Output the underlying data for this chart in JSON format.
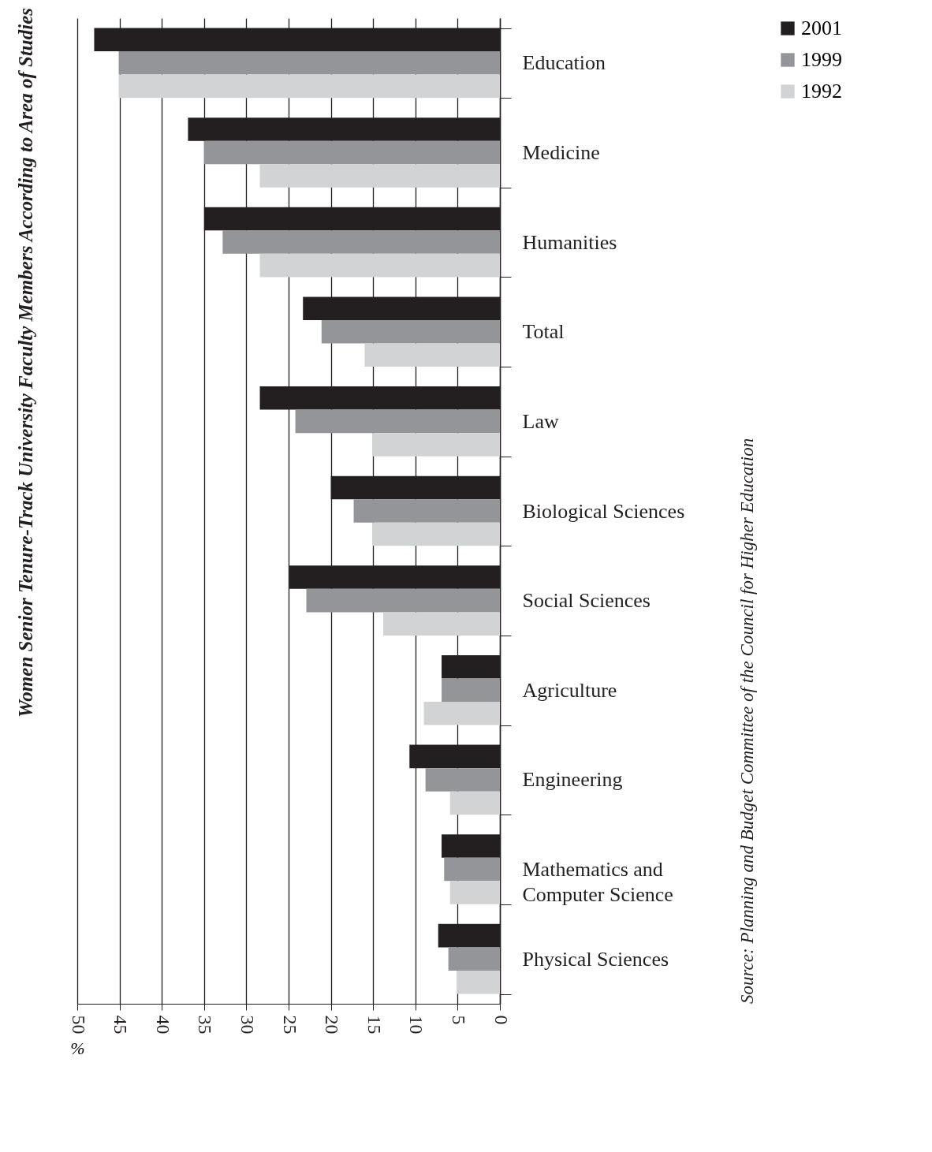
{
  "chart_data": {
    "type": "bar",
    "orientation": "horizontal",
    "title": "Women Senior Tenure-Track University Faculty Members According to Area of Studies",
    "xlabel": "%",
    "annotations": [
      "Source: Planning and Budget Committee of the Council for Higher Education"
    ],
    "categories": [
      "Education",
      "Medicine",
      "Humanities",
      "Total",
      "Law",
      "Biological Sciences",
      "Social Sciences",
      "Agriculture",
      "Engineering",
      "Mathematics and Computer Science",
      "Physical Sciences"
    ],
    "series": [
      {
        "name": "2001",
        "color": "#231f20",
        "values": [
          48,
          36.9,
          35,
          23.3,
          28.4,
          20,
          24.9,
          6.9,
          10.7,
          6.9,
          7.3
        ]
      },
      {
        "name": "1999",
        "color": "#939598",
        "values": [
          45.1,
          35,
          32.8,
          21.1,
          24.2,
          17.3,
          22.9,
          6.9,
          8.8,
          6.6,
          6.1
        ]
      },
      {
        "name": "1992",
        "color": "#d1d3d4",
        "values": [
          45.1,
          28.4,
          28.4,
          16,
          15.1,
          15.1,
          13.8,
          9,
          5.9,
          5.9,
          5.1
        ]
      }
    ],
    "xlim": [
      50,
      0
    ],
    "xticks": [
      50,
      45,
      40,
      35,
      30,
      25,
      20,
      15,
      10,
      5,
      0
    ],
    "grid": "x",
    "legend": "top right"
  }
}
